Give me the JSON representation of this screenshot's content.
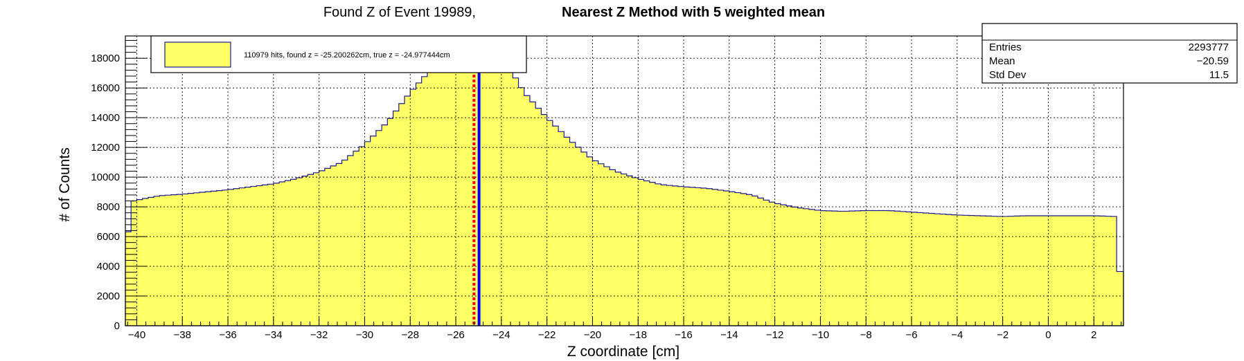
{
  "chart_data": {
    "type": "area",
    "title_plain": "Found Z of Event 19989,",
    "title_bold": "Nearest Z Method with 5 weighted mean",
    "xlabel": "Z coordinate [cm]",
    "ylabel": "# of Counts",
    "xlim": [
      -40.5,
      3.3
    ],
    "ylim": [
      0,
      19500
    ],
    "x_ticks": [
      -40,
      -38,
      -36,
      -34,
      -32,
      -30,
      -28,
      -26,
      -24,
      -22,
      -20,
      -18,
      -16,
      -14,
      -12,
      -10,
      -8,
      -6,
      -4,
      -2,
      0,
      2
    ],
    "y_ticks": [
      0,
      2000,
      4000,
      6000,
      8000,
      10000,
      12000,
      14000,
      16000,
      18000
    ],
    "grid": true,
    "legend": {
      "position": "top-left",
      "entries": [
        "110979 hits, found z = -25.200262cm, true z = -24.977444cm"
      ]
    },
    "stats": {
      "position": "top-right",
      "rows": [
        {
          "label": "Entries",
          "value": "2293777"
        },
        {
          "label": "Mean",
          "value": "−20.59"
        },
        {
          "label": "Std Dev",
          "value": "11.5"
        }
      ]
    },
    "vertical_lines": [
      {
        "x": -25.2,
        "style": "dotted",
        "color": "#ff0000",
        "meaning": "found z"
      },
      {
        "x": -24.98,
        "style": "solid",
        "color": "#0000ff",
        "meaning": "true z"
      }
    ],
    "histogram": {
      "fill_color": "#ffff66",
      "line_color": "#1a1a8c",
      "bin_width": 0.25,
      "bin_start": -40.5,
      "points": [
        [
          -40.5,
          4300
        ],
        [
          -40.25,
          8350
        ],
        [
          -40.0,
          8450
        ],
        [
          -39.5,
          8600
        ],
        [
          -39.0,
          8750
        ],
        [
          -38.0,
          8850
        ],
        [
          -37.0,
          9000
        ],
        [
          -36.0,
          9150
        ],
        [
          -35.0,
          9350
        ],
        [
          -34.0,
          9550
        ],
        [
          -33.0,
          9900
        ],
        [
          -32.0,
          10350
        ],
        [
          -31.0,
          11000
        ],
        [
          -30.0,
          12200
        ],
        [
          -29.0,
          13700
        ],
        [
          -28.0,
          15700
        ],
        [
          -27.0,
          17400
        ],
        [
          -26.5,
          18400
        ],
        [
          -26.0,
          19300
        ],
        [
          -25.0,
          19500
        ],
        [
          -24.0,
          18300
        ],
        [
          -23.0,
          15700
        ],
        [
          -22.0,
          14000
        ],
        [
          -21.0,
          12500
        ],
        [
          -20.0,
          11200
        ],
        [
          -19.0,
          10400
        ],
        [
          -18.0,
          9900
        ],
        [
          -17.0,
          9500
        ],
        [
          -16.0,
          9350
        ],
        [
          -15.0,
          9250
        ],
        [
          -14.0,
          9050
        ],
        [
          -13.0,
          8800
        ],
        [
          -12.0,
          8250
        ],
        [
          -11.0,
          7950
        ],
        [
          -10.0,
          7750
        ],
        [
          -9.0,
          7700
        ],
        [
          -8.0,
          7750
        ],
        [
          -7.0,
          7750
        ],
        [
          -6.0,
          7650
        ],
        [
          -5.0,
          7550
        ],
        [
          -4.0,
          7450
        ],
        [
          -3.0,
          7400
        ],
        [
          -2.0,
          7350
        ],
        [
          -1.0,
          7400
        ],
        [
          0.0,
          7400
        ],
        [
          1.0,
          7400
        ],
        [
          2.0,
          7400
        ],
        [
          3.0,
          7350
        ],
        [
          3.1,
          3650
        ],
        [
          3.3,
          3650
        ]
      ]
    }
  }
}
